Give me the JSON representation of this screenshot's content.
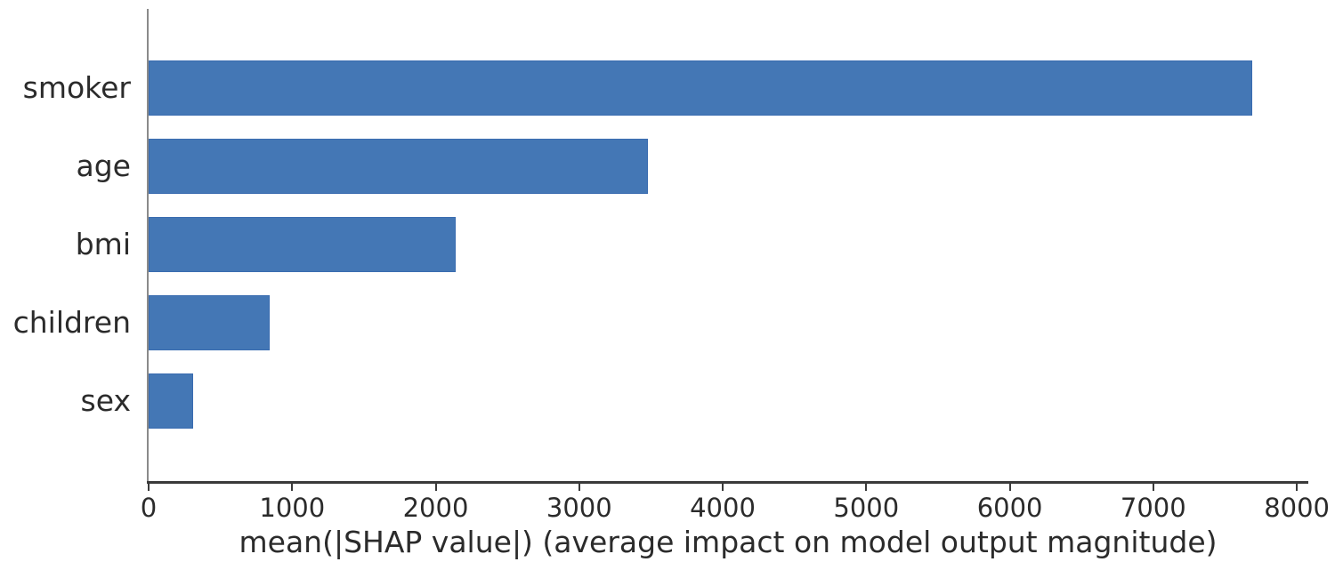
{
  "chart_data": {
    "type": "bar",
    "orientation": "horizontal",
    "title": "",
    "xlabel": "mean(|SHAP value|) (average impact on model output magnitude)",
    "ylabel": "",
    "categories": [
      "smoker",
      "age",
      "bmi",
      "children",
      "sex"
    ],
    "values": [
      7690,
      3480,
      2140,
      840,
      310
    ],
    "xlim": [
      0,
      8080
    ],
    "xticks": [
      0,
      1000,
      2000,
      3000,
      4000,
      5000,
      6000,
      7000,
      8000
    ],
    "xtick_labels": [
      "0",
      "1000",
      "2000",
      "3000",
      "4000",
      "5000",
      "6000",
      "7000",
      "8000"
    ],
    "grid": false,
    "legend_position": "none",
    "colors": {
      "bar_fill": "#4477b5",
      "bar_edge": "#3a6cb0",
      "y_spine": "#8a8a8a",
      "x_spine": "#3a3a3a",
      "tick": "#3a3a3a",
      "text": "#2b2b2b",
      "background": "#ffffff"
    }
  }
}
